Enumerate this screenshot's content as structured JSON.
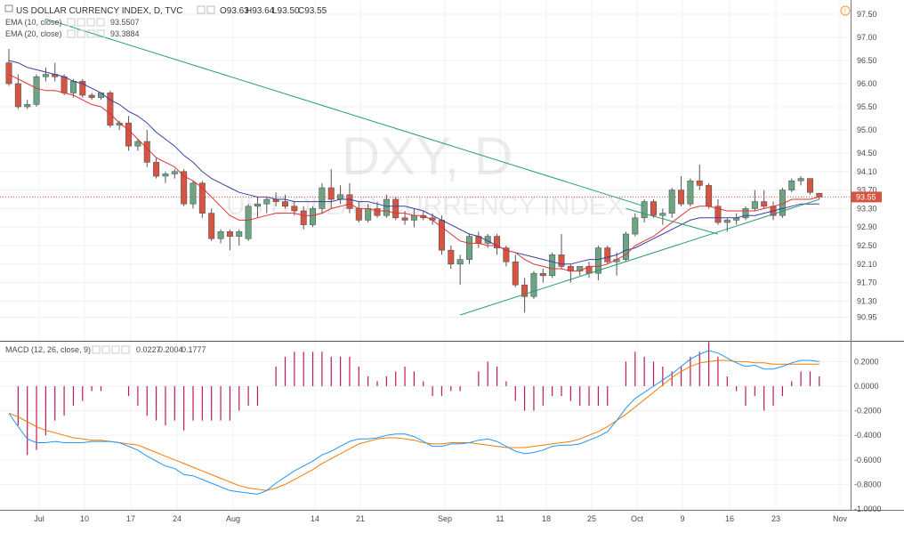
{
  "header": {
    "title": "US DOLLAR CURRENCY INDEX, D, TVC",
    "ohlc": {
      "open": "O93.63",
      "high": "H93.64",
      "low": "L93.50",
      "close": "C93.55"
    },
    "ema10": {
      "label": "EMA (10, close)",
      "value": "93.5507",
      "color": "#e03131"
    },
    "ema20": {
      "label": "EMA (20, close)",
      "value": "93.3884",
      "color": "#3a3fa0"
    },
    "macd": {
      "label": "MACD (12, 26, close, 9)",
      "hist": "0.0227",
      "macd": "0.2004",
      "signal": "0.1777",
      "hist_color": "#c2185b",
      "macd_color": "#2196f3",
      "signal_color": "#f57c00"
    }
  },
  "watermark": {
    "symbol": "DXY, D",
    "name": "US DOLLAR CURRENCY INDEX"
  },
  "price_tag": "93.55",
  "icons": {
    "alert": "info-circle-icon",
    "visibility": "eye-icon",
    "settings": "gear-icon",
    "close": "close-icon"
  },
  "colors": {
    "up": "#6ba583",
    "down": "#d75442",
    "trend": "#2c9b72",
    "axis_text": "#4a4a4a"
  },
  "chart_data": [
    {
      "type": "candlestick",
      "title": "US DOLLAR CURRENCY INDEX, D, TVC",
      "y_ticks": [
        "97.50",
        "97.00",
        "96.50",
        "96.00",
        "95.50",
        "95.00",
        "94.50",
        "94.10",
        "93.70",
        "93.30",
        "92.90",
        "92.50",
        "92.10",
        "91.70",
        "91.30",
        "90.95"
      ],
      "x_ticks": [
        "Jul",
        "10",
        "17",
        "24",
        "Aug",
        "14",
        "21",
        "Sep",
        "11",
        "18",
        "25",
        "Oct",
        "9",
        "16",
        "23",
        "Nov"
      ],
      "ylim": [
        90.7,
        97.7
      ],
      "candles": [
        {
          "o": 96.45,
          "h": 96.75,
          "l": 95.95,
          "c": 96.0
        },
        {
          "o": 96.0,
          "h": 96.2,
          "l": 95.45,
          "c": 95.5
        },
        {
          "o": 95.5,
          "h": 95.65,
          "l": 95.45,
          "c": 95.55
        },
        {
          "o": 95.55,
          "h": 96.2,
          "l": 95.5,
          "c": 96.15
        },
        {
          "o": 96.15,
          "h": 96.35,
          "l": 96.05,
          "c": 96.2
        },
        {
          "o": 96.2,
          "h": 96.45,
          "l": 96.05,
          "c": 96.15
        },
        {
          "o": 96.15,
          "h": 96.2,
          "l": 95.75,
          "c": 95.8
        },
        {
          "o": 95.8,
          "h": 96.1,
          "l": 95.7,
          "c": 96.05
        },
        {
          "o": 96.05,
          "h": 96.1,
          "l": 95.7,
          "c": 95.75
        },
        {
          "o": 95.75,
          "h": 95.8,
          "l": 95.65,
          "c": 95.7
        },
        {
          "o": 95.7,
          "h": 95.8,
          "l": 95.65,
          "c": 95.8
        },
        {
          "o": 95.8,
          "h": 95.85,
          "l": 95.05,
          "c": 95.1
        },
        {
          "o": 95.1,
          "h": 95.2,
          "l": 95.0,
          "c": 95.15
        },
        {
          "o": 95.15,
          "h": 95.3,
          "l": 94.55,
          "c": 94.65
        },
        {
          "o": 94.65,
          "h": 94.8,
          "l": 94.55,
          "c": 94.75
        },
        {
          "o": 94.75,
          "h": 95.0,
          "l": 94.2,
          "c": 94.3
        },
        {
          "o": 94.3,
          "h": 94.4,
          "l": 93.95,
          "c": 94.0
        },
        {
          "o": 94.0,
          "h": 94.1,
          "l": 93.85,
          "c": 94.05
        },
        {
          "o": 94.05,
          "h": 94.15,
          "l": 93.95,
          "c": 94.1
        },
        {
          "o": 94.1,
          "h": 94.15,
          "l": 93.35,
          "c": 93.4
        },
        {
          "o": 93.4,
          "h": 93.9,
          "l": 93.3,
          "c": 93.85
        },
        {
          "o": 93.85,
          "h": 93.9,
          "l": 93.1,
          "c": 93.2
        },
        {
          "o": 93.2,
          "h": 93.3,
          "l": 92.6,
          "c": 92.65
        },
        {
          "o": 92.65,
          "h": 92.85,
          "l": 92.55,
          "c": 92.8
        },
        {
          "o": 92.8,
          "h": 92.85,
          "l": 92.4,
          "c": 92.7
        },
        {
          "o": 92.7,
          "h": 92.85,
          "l": 92.5,
          "c": 92.8
        },
        {
          "o": 92.65,
          "h": 93.4,
          "l": 92.6,
          "c": 93.35
        },
        {
          "o": 93.35,
          "h": 93.55,
          "l": 93.1,
          "c": 93.4
        },
        {
          "o": 93.4,
          "h": 93.55,
          "l": 93.2,
          "c": 93.5
        },
        {
          "o": 93.5,
          "h": 93.65,
          "l": 93.35,
          "c": 93.45
        },
        {
          "o": 93.45,
          "h": 93.6,
          "l": 93.3,
          "c": 93.35
        },
        {
          "o": 93.35,
          "h": 93.45,
          "l": 93.15,
          "c": 93.25
        },
        {
          "o": 93.25,
          "h": 93.35,
          "l": 92.85,
          "c": 92.95
        },
        {
          "o": 92.95,
          "h": 93.35,
          "l": 92.9,
          "c": 93.3
        },
        {
          "o": 93.3,
          "h": 93.85,
          "l": 93.2,
          "c": 93.75
        },
        {
          "o": 93.75,
          "h": 94.15,
          "l": 93.3,
          "c": 93.5
        },
        {
          "o": 93.5,
          "h": 93.8,
          "l": 93.4,
          "c": 93.6
        },
        {
          "o": 93.6,
          "h": 93.85,
          "l": 93.2,
          "c": 93.3
        },
        {
          "o": 93.3,
          "h": 93.45,
          "l": 93.0,
          "c": 93.05
        },
        {
          "o": 93.05,
          "h": 93.4,
          "l": 93.0,
          "c": 93.3
        },
        {
          "o": 93.3,
          "h": 93.45,
          "l": 93.1,
          "c": 93.15
        },
        {
          "o": 93.15,
          "h": 93.6,
          "l": 93.1,
          "c": 93.5
        },
        {
          "o": 93.5,
          "h": 93.55,
          "l": 93.05,
          "c": 93.1
        },
        {
          "o": 93.1,
          "h": 93.25,
          "l": 92.95,
          "c": 93.05
        },
        {
          "o": 93.05,
          "h": 93.3,
          "l": 92.9,
          "c": 93.15
        },
        {
          "o": 93.15,
          "h": 93.25,
          "l": 93.05,
          "c": 93.1
        },
        {
          "o": 93.1,
          "h": 93.2,
          "l": 92.95,
          "c": 93.05
        },
        {
          "o": 93.05,
          "h": 93.15,
          "l": 92.3,
          "c": 92.4
        },
        {
          "o": 92.4,
          "h": 92.5,
          "l": 92.0,
          "c": 92.1
        },
        {
          "o": 92.1,
          "h": 92.3,
          "l": 91.65,
          "c": 92.2
        },
        {
          "o": 92.2,
          "h": 92.75,
          "l": 92.1,
          "c": 92.7
        },
        {
          "o": 92.7,
          "h": 92.8,
          "l": 92.45,
          "c": 92.55
        },
        {
          "o": 92.55,
          "h": 92.75,
          "l": 92.45,
          "c": 92.7
        },
        {
          "o": 92.7,
          "h": 92.75,
          "l": 92.3,
          "c": 92.45
        },
        {
          "o": 92.45,
          "h": 92.5,
          "l": 92.05,
          "c": 92.15
        },
        {
          "o": 92.15,
          "h": 92.3,
          "l": 91.6,
          "c": 91.65
        },
        {
          "o": 91.65,
          "h": 91.8,
          "l": 91.05,
          "c": 91.4
        },
        {
          "o": 91.4,
          "h": 91.95,
          "l": 91.35,
          "c": 91.9
        },
        {
          "o": 91.9,
          "h": 92.0,
          "l": 91.7,
          "c": 91.85
        },
        {
          "o": 91.85,
          "h": 92.35,
          "l": 91.8,
          "c": 92.3
        },
        {
          "o": 92.3,
          "h": 92.75,
          "l": 92.0,
          "c": 92.05
        },
        {
          "o": 92.05,
          "h": 92.1,
          "l": 91.7,
          "c": 91.95
        },
        {
          "o": 91.95,
          "h": 92.05,
          "l": 91.85,
          "c": 92.05
        },
        {
          "o": 92.05,
          "h": 92.15,
          "l": 91.8,
          "c": 91.9
        },
        {
          "o": 91.9,
          "h": 92.5,
          "l": 91.75,
          "c": 92.45
        },
        {
          "o": 92.45,
          "h": 92.5,
          "l": 92.1,
          "c": 92.15
        },
        {
          "o": 92.15,
          "h": 92.35,
          "l": 91.85,
          "c": 92.2
        },
        {
          "o": 92.2,
          "h": 92.8,
          "l": 92.15,
          "c": 92.75
        },
        {
          "o": 92.75,
          "h": 93.2,
          "l": 92.7,
          "c": 93.1
        },
        {
          "o": 93.1,
          "h": 93.5,
          "l": 93.0,
          "c": 93.45
        },
        {
          "o": 93.45,
          "h": 93.5,
          "l": 93.1,
          "c": 93.15
        },
        {
          "o": 93.15,
          "h": 93.3,
          "l": 92.95,
          "c": 93.2
        },
        {
          "o": 93.2,
          "h": 93.75,
          "l": 93.1,
          "c": 93.7
        },
        {
          "o": 93.7,
          "h": 94.0,
          "l": 93.35,
          "c": 93.4
        },
        {
          "o": 93.4,
          "h": 93.95,
          "l": 93.35,
          "c": 93.9
        },
        {
          "o": 93.9,
          "h": 94.25,
          "l": 93.7,
          "c": 93.8
        },
        {
          "o": 93.8,
          "h": 93.85,
          "l": 93.3,
          "c": 93.35
        },
        {
          "o": 93.35,
          "h": 93.5,
          "l": 92.95,
          "c": 93.0
        },
        {
          "o": 93.0,
          "h": 93.1,
          "l": 92.8,
          "c": 93.05
        },
        {
          "o": 93.05,
          "h": 93.2,
          "l": 92.95,
          "c": 93.1
        },
        {
          "o": 93.1,
          "h": 93.35,
          "l": 93.05,
          "c": 93.3
        },
        {
          "o": 93.3,
          "h": 93.7,
          "l": 93.25,
          "c": 93.45
        },
        {
          "o": 93.45,
          "h": 93.7,
          "l": 93.3,
          "c": 93.35
        },
        {
          "o": 93.35,
          "h": 93.45,
          "l": 93.05,
          "c": 93.15
        },
        {
          "o": 93.15,
          "h": 93.75,
          "l": 93.1,
          "c": 93.7
        },
        {
          "o": 93.7,
          "h": 93.95,
          "l": 93.65,
          "c": 93.9
        },
        {
          "o": 93.9,
          "h": 94.0,
          "l": 93.8,
          "c": 93.95
        },
        {
          "o": 93.95,
          "h": 93.95,
          "l": 93.6,
          "c": 93.65
        },
        {
          "o": 93.63,
          "h": 93.64,
          "l": 93.5,
          "c": 93.55
        }
      ],
      "ema10": [
        96.2,
        96.1,
        96.0,
        95.9,
        95.85,
        95.85,
        95.8,
        95.75,
        95.65,
        95.55,
        95.5,
        95.35,
        95.15,
        95.0,
        94.8,
        94.6,
        94.4,
        94.3,
        94.2,
        94.0,
        93.9,
        93.75,
        93.55,
        93.35,
        93.15,
        93.05,
        93.05,
        93.1,
        93.15,
        93.2,
        93.2,
        93.2,
        93.15,
        93.15,
        93.2,
        93.3,
        93.35,
        93.4,
        93.3,
        93.3,
        93.25,
        93.25,
        93.2,
        93.2,
        93.15,
        93.15,
        93.05,
        92.9,
        92.75,
        92.6,
        92.55,
        92.55,
        92.5,
        92.5,
        92.4,
        92.35,
        92.2,
        92.1,
        92.05,
        92.0,
        92.0,
        91.95,
        91.95,
        92.05,
        92.05,
        92.1,
        92.2,
        92.3,
        92.5,
        92.6,
        92.7,
        92.85,
        93.0,
        93.15,
        93.3,
        93.35,
        93.35,
        93.3,
        93.25,
        93.25,
        93.25,
        93.25,
        93.3,
        93.35,
        93.4,
        93.5,
        93.5,
        93.5,
        93.55
      ],
      "ema20": [
        96.5,
        96.45,
        96.35,
        96.3,
        96.25,
        96.2,
        96.15,
        96.05,
        96.0,
        95.9,
        95.8,
        95.65,
        95.55,
        95.4,
        95.3,
        95.15,
        94.95,
        94.8,
        94.65,
        94.45,
        94.3,
        94.1,
        93.95,
        93.85,
        93.75,
        93.65,
        93.6,
        93.55,
        93.55,
        93.5,
        93.5,
        93.45,
        93.45,
        93.45,
        93.45,
        93.45,
        93.5,
        93.5,
        93.45,
        93.45,
        93.4,
        93.35,
        93.35,
        93.35,
        93.3,
        93.25,
        93.15,
        93.05,
        92.95,
        92.85,
        92.75,
        92.7,
        92.6,
        92.5,
        92.4,
        92.35,
        92.3,
        92.25,
        92.2,
        92.15,
        92.1,
        92.1,
        92.15,
        92.2,
        92.2,
        92.25,
        92.3,
        92.4,
        92.45,
        92.55,
        92.65,
        92.75,
        92.85,
        92.95,
        93.05,
        93.1,
        93.1,
        93.1,
        93.1,
        93.1,
        93.15,
        93.15,
        93.2,
        93.25,
        93.3,
        93.35,
        93.4,
        93.4,
        93.4
      ],
      "trendlines": [
        {
          "from": {
            "i": 4,
            "price": 97.4
          },
          "to": {
            "i": 69,
            "price": 93.35
          }
        },
        {
          "from": {
            "i": 49,
            "price": 91.0
          },
          "to": {
            "i": 88,
            "price": 93.5
          }
        },
        {
          "from": {
            "i": 67,
            "price": 93.3
          },
          "to": {
            "i": 77,
            "price": 92.75
          }
        }
      ]
    },
    {
      "type": "macd",
      "title": "MACD (12, 26, close, 9)",
      "y_ticks": [
        "0.2000",
        "0.0000",
        "-0.2000",
        "-0.4000",
        "-0.6000",
        "-0.8000",
        "-1.0000"
      ],
      "ylim": [
        -1.0,
        0.28
      ],
      "macd": [
        -0.22,
        -0.33,
        -0.43,
        -0.46,
        -0.46,
        -0.45,
        -0.46,
        -0.46,
        -0.46,
        -0.45,
        -0.45,
        -0.45,
        -0.46,
        -0.49,
        -0.52,
        -0.57,
        -0.61,
        -0.65,
        -0.67,
        -0.72,
        -0.73,
        -0.76,
        -0.79,
        -0.82,
        -0.85,
        -0.86,
        -0.87,
        -0.88,
        -0.85,
        -0.79,
        -0.74,
        -0.69,
        -0.65,
        -0.61,
        -0.56,
        -0.53,
        -0.49,
        -0.45,
        -0.43,
        -0.43,
        -0.42,
        -0.4,
        -0.39,
        -0.39,
        -0.41,
        -0.45,
        -0.49,
        -0.49,
        -0.47,
        -0.47,
        -0.46,
        -0.44,
        -0.43,
        -0.45,
        -0.49,
        -0.53,
        -0.55,
        -0.54,
        -0.52,
        -0.49,
        -0.48,
        -0.48,
        -0.47,
        -0.44,
        -0.41,
        -0.37,
        -0.28,
        -0.18,
        -0.1,
        -0.05,
        0.0,
        0.05,
        0.1,
        0.16,
        0.22,
        0.26,
        0.29,
        0.27,
        0.23,
        0.19,
        0.16,
        0.17,
        0.14,
        0.14,
        0.16,
        0.19,
        0.21,
        0.21,
        0.2
      ],
      "signal": [
        -0.22,
        -0.25,
        -0.29,
        -0.33,
        -0.36,
        -0.38,
        -0.4,
        -0.42,
        -0.43,
        -0.44,
        -0.44,
        -0.45,
        -0.46,
        -0.47,
        -0.48,
        -0.51,
        -0.54,
        -0.57,
        -0.6,
        -0.63,
        -0.66,
        -0.69,
        -0.72,
        -0.75,
        -0.78,
        -0.81,
        -0.83,
        -0.84,
        -0.85,
        -0.83,
        -0.8,
        -0.76,
        -0.72,
        -0.68,
        -0.63,
        -0.59,
        -0.55,
        -0.51,
        -0.47,
        -0.45,
        -0.43,
        -0.42,
        -0.42,
        -0.43,
        -0.44,
        -0.46,
        -0.47,
        -0.47,
        -0.46,
        -0.46,
        -0.46,
        -0.47,
        -0.48,
        -0.49,
        -0.5,
        -0.5,
        -0.5,
        -0.49,
        -0.48,
        -0.47,
        -0.46,
        -0.45,
        -0.43,
        -0.4,
        -0.37,
        -0.33,
        -0.28,
        -0.23,
        -0.17,
        -0.11,
        -0.05,
        0.01,
        0.07,
        0.12,
        0.16,
        0.19,
        0.2,
        0.21,
        0.21,
        0.2,
        0.2,
        0.19,
        0.19,
        0.18,
        0.18,
        0.18,
        0.18,
        0.18,
        0.18
      ]
    }
  ]
}
